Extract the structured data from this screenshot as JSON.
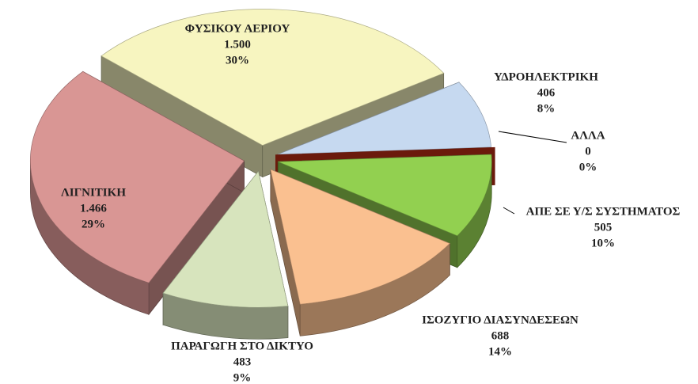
{
  "chart_data": {
    "type": "pie",
    "categories": [
      "ΥΔΡΟΗΛΕΚΤΡΙΚΗ",
      "ΑΛΛΑ",
      "ΑΠΕ ΣΕ Υ/Σ ΣΥΣΤΗΜΑΤΟΣ",
      "ΙΣΟΖΥΓΙΟ ΔΙΑΣΥΝΔΕΣΕΩΝ",
      "ΠΑΡΑΓΩΓΗ ΣΤΟ ΔΙΚΤΥΟ",
      "ΛΙΓΝΙΤΙΚΗ",
      "ΦΥΣΙΚΟΥ ΑΕΡΙΟΥ"
    ],
    "values": [
      406,
      0,
      505,
      688,
      483,
      1466,
      1500
    ],
    "value_labels": [
      "406",
      "0",
      "505",
      "688",
      "483",
      "1.466",
      "1.500"
    ],
    "percents": [
      8,
      0,
      10,
      14,
      9,
      29,
      30
    ],
    "percent_labels": [
      "8%",
      "0%",
      "10%",
      "14%",
      "9%",
      "29%",
      "30%"
    ],
    "colors": [
      "#c6d9f0",
      "#6b1a0c",
      "#92d050",
      "#fac090",
      "#d7e4bd",
      "#d99694",
      "#f7f5c0"
    ]
  }
}
